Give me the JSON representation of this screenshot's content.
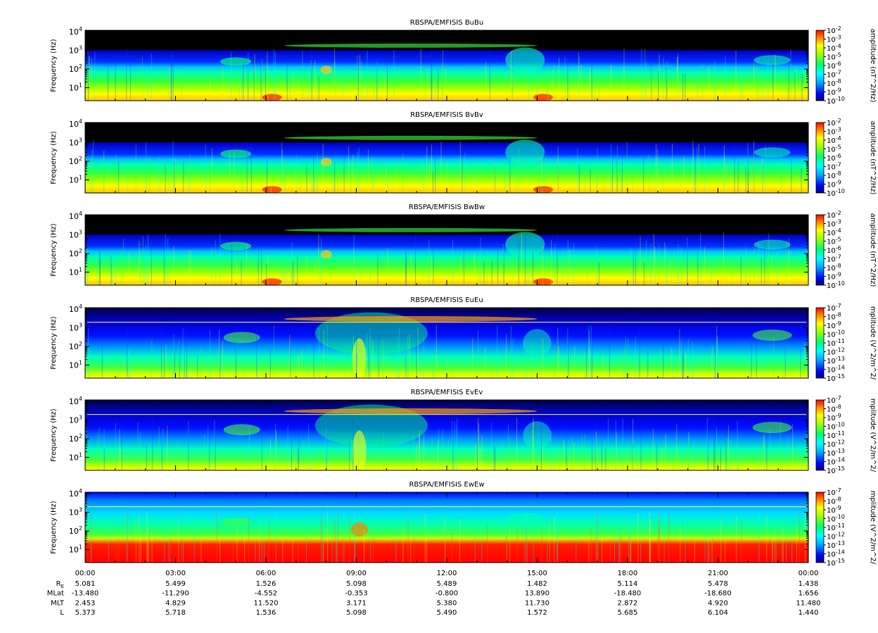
{
  "chart_data": {
    "type": "heatmap",
    "x_ticks": [
      "00:00",
      "03:00",
      "06:00",
      "09:00",
      "12:00",
      "15:00",
      "18:00",
      "21:00",
      "00:00"
    ],
    "ylabel": "Frequency (Hz)",
    "ylim": [
      2,
      12000
    ],
    "yscale": "log",
    "y_ticks": [
      {
        "base": "10",
        "exp": "1"
      },
      {
        "base": "10",
        "exp": "2"
      },
      {
        "base": "10",
        "exp": "3"
      },
      {
        "base": "10",
        "exp": "4"
      }
    ],
    "panels": [
      {
        "title": "RBSPA/EMFISIS  BuBu",
        "cbar_label": "amplitude (nT^2/Hz)",
        "cbar_min_exp": -10,
        "cbar_max_exp": -2,
        "channel": "B"
      },
      {
        "title": "RBSPA/EMFISIS  BvBv",
        "cbar_label": "amplitude (nT^2/Hz)",
        "cbar_min_exp": -10,
        "cbar_max_exp": -2,
        "channel": "B"
      },
      {
        "title": "RBSPA/EMFISIS  BwBw",
        "cbar_label": "amplitude (nT^2/Hz)",
        "cbar_min_exp": -10,
        "cbar_max_exp": -2,
        "channel": "B"
      },
      {
        "title": "RBSPA/EMFISIS  EuEu",
        "cbar_label": "mplitude (V^2/m^2/",
        "cbar_min_exp": -15,
        "cbar_max_exp": -7,
        "channel": "E"
      },
      {
        "title": "RBSPA/EMFISIS  EvEv",
        "cbar_label": "mplitude (V^2/m^2/",
        "cbar_min_exp": -15,
        "cbar_max_exp": -7,
        "channel": "E"
      },
      {
        "title": "RBSPA/EMFISIS  EwEw",
        "cbar_label": "mplitude (V^2/m^2/",
        "cbar_min_exp": -15,
        "cbar_max_exp": -7,
        "channel": "Ew"
      }
    ],
    "ephemeris": {
      "rows": [
        {
          "label": "R",
          "label_sub": "E",
          "values": [
            "5.081",
            "5.499",
            "1.526",
            "5.098",
            "5.489",
            "1.482",
            "5.114",
            "5.478",
            "1.438"
          ]
        },
        {
          "label": "MLat",
          "label_sub": "",
          "values": [
            "-13.480",
            "-11.290",
            "-4.552",
            "-0.353",
            "-0.800",
            "13.890",
            "-18.480",
            "-18.680",
            "1.656"
          ]
        },
        {
          "label": "MLT",
          "label_sub": "",
          "values": [
            "2.453",
            "4.829",
            "11.520",
            "3.171",
            "5.380",
            "11.730",
            "2.872",
            "4.920",
            "11.480"
          ]
        },
        {
          "label": "L",
          "label_sub": "",
          "values": [
            "5.373",
            "5.718",
            "1.536",
            "5.098",
            "5.490",
            "1.572",
            "5.685",
            "6.104",
            "1.440"
          ]
        }
      ]
    }
  }
}
